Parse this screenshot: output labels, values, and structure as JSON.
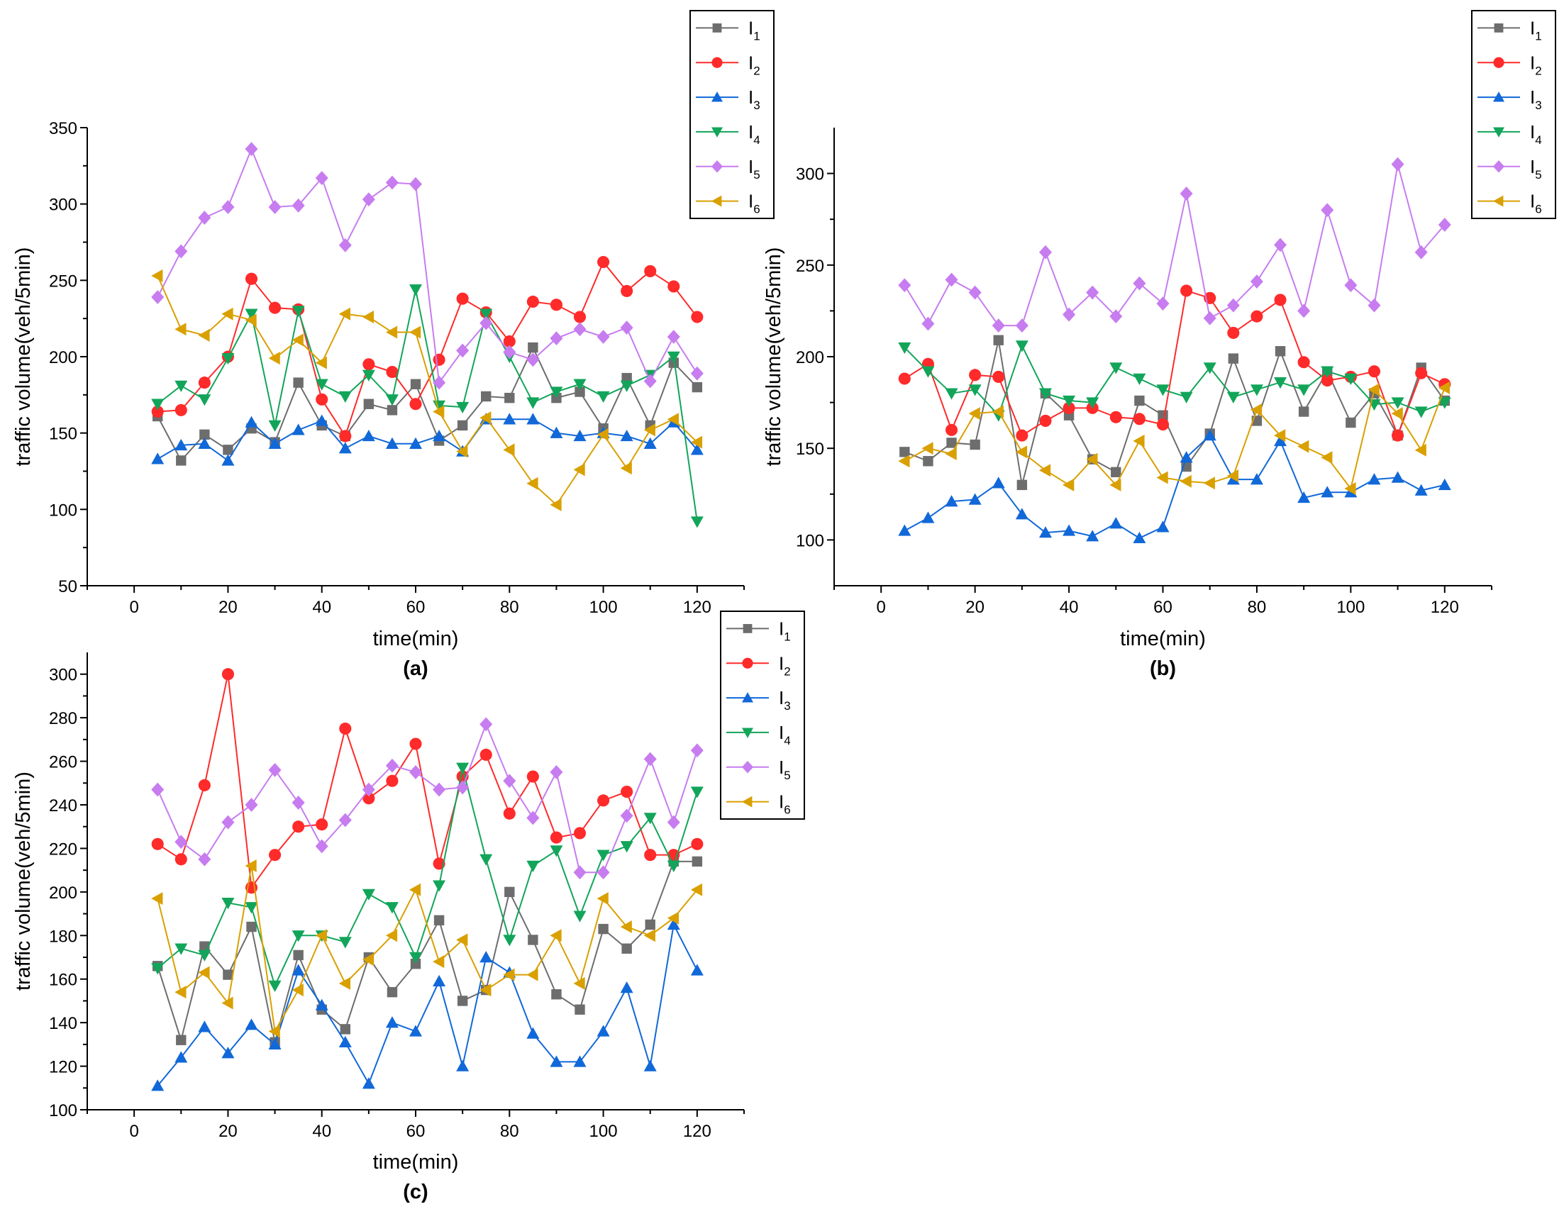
{
  "colors": {
    "I1": "#6d6d6d",
    "I2": "#ff2a2a",
    "I3": "#1168d8",
    "I4": "#12a55a",
    "I5": "#c77cf0",
    "I6": "#d9a000"
  },
  "chart_data": [
    {
      "type": "line",
      "panel_label": "(a)",
      "xlabel": "time(min)",
      "ylabel": "traffic volume(veh/5min)",
      "xlim": [
        -10,
        130
      ],
      "ylim": [
        50,
        350
      ],
      "xticks": [
        0,
        20,
        40,
        60,
        80,
        100,
        120
      ],
      "yticks": [
        50,
        100,
        150,
        200,
        250,
        300,
        350
      ],
      "legend_placement": "top-right",
      "x": [
        5,
        10,
        15,
        20,
        25,
        30,
        35,
        40,
        45,
        50,
        55,
        60,
        65,
        70,
        75,
        80,
        85,
        90,
        95,
        100,
        105,
        110,
        115,
        120
      ],
      "series": [
        {
          "name": "I",
          "sub": "1",
          "key": "I1",
          "marker": "square",
          "values": [
            161,
            132,
            149,
            139,
            153,
            144,
            183,
            155,
            148,
            169,
            165,
            182,
            145,
            155,
            174,
            173,
            206,
            173,
            177,
            153,
            186,
            155,
            196,
            180
          ]
        },
        {
          "name": "I",
          "sub": "2",
          "key": "I2",
          "marker": "circle",
          "values": [
            164,
            165,
            183,
            200,
            251,
            232,
            231,
            172,
            148,
            195,
            190,
            169,
            198,
            238,
            229,
            210,
            236,
            234,
            226,
            262,
            243,
            256,
            246,
            226
          ]
        },
        {
          "name": "I",
          "sub": "3",
          "key": "I3",
          "marker": "triangle-up",
          "values": [
            133,
            142,
            143,
            132,
            157,
            143,
            152,
            158,
            140,
            148,
            143,
            143,
            148,
            138,
            159,
            159,
            159,
            150,
            148,
            150,
            148,
            143,
            157,
            139
          ]
        },
        {
          "name": "I",
          "sub": "4",
          "key": "I4",
          "marker": "triangle-down",
          "values": [
            169,
            181,
            172,
            199,
            228,
            155,
            230,
            182,
            174,
            188,
            172,
            244,
            168,
            167,
            228,
            200,
            170,
            177,
            182,
            174,
            181,
            188,
            200,
            92
          ]
        },
        {
          "name": "I",
          "sub": "5",
          "key": "I5",
          "marker": "diamond",
          "values": [
            239,
            269,
            291,
            298,
            336,
            298,
            299,
            317,
            273,
            303,
            314,
            313,
            183,
            204,
            222,
            203,
            198,
            212,
            218,
            213,
            219,
            184,
            213,
            189
          ]
        },
        {
          "name": "I",
          "sub": "6",
          "key": "I6",
          "marker": "triangle-left",
          "values": [
            253,
            218,
            214,
            228,
            224,
            199,
            211,
            196,
            228,
            226,
            216,
            216,
            164,
            138,
            160,
            139,
            117,
            103,
            126,
            149,
            127,
            152,
            159,
            144
          ]
        }
      ]
    },
    {
      "type": "line",
      "panel_label": "(b)",
      "xlabel": "time(min)",
      "ylabel": "traffic volume(veh/5min)",
      "xlim": [
        -10,
        130
      ],
      "ylim": [
        75,
        325
      ],
      "xticks": [
        0,
        20,
        40,
        60,
        80,
        100,
        120
      ],
      "yticks": [
        100,
        150,
        200,
        250,
        300
      ],
      "legend_placement": "top-right",
      "x": [
        5,
        10,
        15,
        20,
        25,
        30,
        35,
        40,
        45,
        50,
        55,
        60,
        65,
        70,
        75,
        80,
        85,
        90,
        95,
        100,
        105,
        110,
        115,
        120
      ],
      "series": [
        {
          "name": "I",
          "sub": "1",
          "key": "I1",
          "marker": "square",
          "values": [
            148,
            143,
            153,
            152,
            209,
            130,
            180,
            168,
            144,
            137,
            176,
            168,
            140,
            158,
            199,
            165,
            203,
            170,
            192,
            164,
            180,
            157,
            194,
            176
          ]
        },
        {
          "name": "I",
          "sub": "2",
          "key": "I2",
          "marker": "circle",
          "values": [
            188,
            196,
            160,
            190,
            189,
            157,
            165,
            172,
            172,
            167,
            166,
            163,
            236,
            232,
            213,
            222,
            231,
            197,
            187,
            189,
            192,
            157,
            191,
            185
          ]
        },
        {
          "name": "I",
          "sub": "3",
          "key": "I3",
          "marker": "triangle-up",
          "values": [
            105,
            112,
            121,
            122,
            131,
            114,
            104,
            105,
            102,
            109,
            101,
            107,
            145,
            157,
            133,
            133,
            154,
            123,
            126,
            126,
            133,
            134,
            127,
            130
          ]
        },
        {
          "name": "I",
          "sub": "4",
          "key": "I4",
          "marker": "triangle-down",
          "values": [
            205,
            192,
            180,
            182,
            168,
            206,
            180,
            176,
            175,
            194,
            188,
            182,
            178,
            194,
            178,
            182,
            186,
            182,
            192,
            188,
            174,
            175,
            170,
            175
          ]
        },
        {
          "name": "I",
          "sub": "5",
          "key": "I5",
          "marker": "diamond",
          "values": [
            239,
            218,
            242,
            235,
            217,
            217,
            257,
            223,
            235,
            222,
            240,
            229,
            289,
            221,
            228,
            241,
            261,
            225,
            280,
            239,
            228,
            305,
            257,
            272
          ]
        },
        {
          "name": "I",
          "sub": "6",
          "key": "I6",
          "marker": "triangle-left",
          "values": [
            143,
            150,
            147,
            169,
            170,
            148,
            138,
            130,
            144,
            130,
            154,
            134,
            132,
            131,
            135,
            171,
            157,
            151,
            145,
            128,
            182,
            169,
            149,
            183
          ]
        }
      ]
    },
    {
      "type": "line",
      "panel_label": "(c)",
      "xlabel": "time(min)",
      "ylabel": "traffic volume(veh/5min)",
      "xlim": [
        -10,
        130
      ],
      "ylim": [
        100,
        310
      ],
      "xticks": [
        0,
        20,
        40,
        60,
        80,
        100,
        120
      ],
      "yticks": [
        100,
        120,
        140,
        160,
        180,
        200,
        220,
        240,
        260,
        280,
        300
      ],
      "legend_placement": "top-right",
      "x": [
        5,
        10,
        15,
        20,
        25,
        30,
        35,
        40,
        45,
        50,
        55,
        60,
        65,
        70,
        75,
        80,
        85,
        90,
        95,
        100,
        105,
        110,
        115,
        120
      ],
      "series": [
        {
          "name": "I",
          "sub": "1",
          "key": "I1",
          "marker": "square",
          "values": [
            166,
            132,
            175,
            162,
            184,
            131,
            171,
            146,
            137,
            170,
            154,
            167,
            187,
            150,
            155,
            200,
            178,
            153,
            146,
            183,
            174,
            185,
            214,
            214
          ]
        },
        {
          "name": "I",
          "sub": "2",
          "key": "I2",
          "marker": "circle",
          "values": [
            222,
            215,
            249,
            300,
            202,
            217,
            230,
            231,
            275,
            243,
            251,
            268,
            213,
            253,
            263,
            236,
            253,
            225,
            227,
            242,
            246,
            217,
            217,
            222
          ]
        },
        {
          "name": "I",
          "sub": "3",
          "key": "I3",
          "marker": "triangle-up",
          "values": [
            111,
            124,
            138,
            126,
            139,
            130,
            164,
            148,
            131,
            112,
            140,
            136,
            159,
            120,
            170,
            163,
            135,
            122,
            122,
            136,
            156,
            120,
            185,
            164
          ]
        },
        {
          "name": "I",
          "sub": "4",
          "key": "I4",
          "marker": "triangle-down",
          "values": [
            165,
            174,
            171,
            195,
            193,
            157,
            180,
            180,
            177,
            199,
            193,
            170,
            203,
            257,
            215,
            178,
            212,
            219,
            189,
            217,
            221,
            234,
            212,
            246
          ]
        },
        {
          "name": "I",
          "sub": "5",
          "key": "I5",
          "marker": "diamond",
          "values": [
            247,
            223,
            215,
            232,
            240,
            256,
            241,
            221,
            233,
            247,
            258,
            255,
            247,
            248,
            277,
            251,
            234,
            255,
            209,
            209,
            235,
            261,
            232,
            265
          ]
        },
        {
          "name": "I",
          "sub": "6",
          "key": "I6",
          "marker": "triangle-left",
          "values": [
            197,
            154,
            163,
            149,
            212,
            136,
            155,
            180,
            158,
            169,
            180,
            201,
            168,
            178,
            155,
            162,
            162,
            180,
            158,
            197,
            184,
            180,
            188,
            201
          ]
        }
      ]
    }
  ]
}
